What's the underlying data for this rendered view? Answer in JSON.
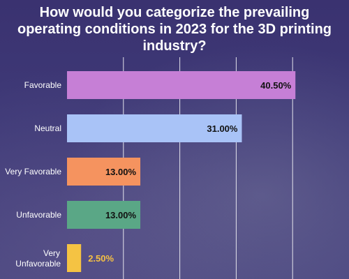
{
  "chart_data": {
    "type": "bar",
    "orientation": "horizontal",
    "title": "How would you categorize the prevailing operating conditions in 2023 for the 3D printing industry?",
    "categories": [
      "Favorable",
      "Neutral",
      "Very Favorable",
      "Unfavorable",
      "Very Unfavorable"
    ],
    "values": [
      40.5,
      31.0,
      13.0,
      13.0,
      2.5
    ],
    "value_labels": [
      "40.50%",
      "31.00%",
      "13.00%",
      "13.00%",
      "2.50%"
    ],
    "colors": [
      "#c67fd6",
      "#a9c3f7",
      "#f5935f",
      "#5aa786",
      "#f5c343"
    ],
    "xlim": [
      0,
      50
    ],
    "grid": true,
    "legend": "none"
  }
}
